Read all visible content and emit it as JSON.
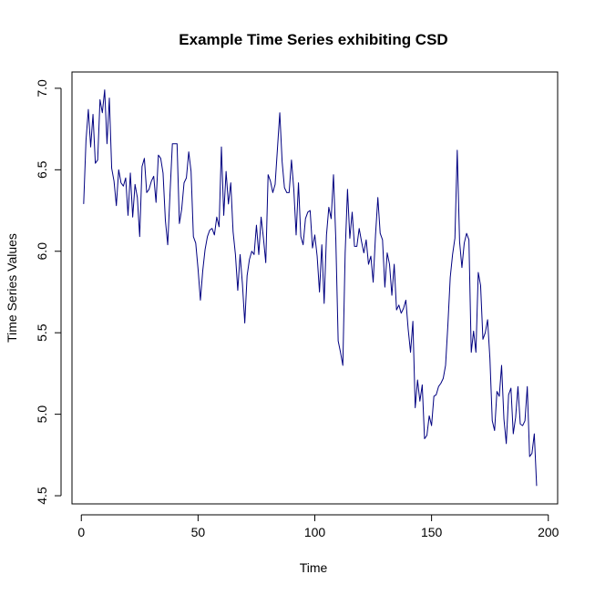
{
  "chart_data": {
    "type": "line",
    "title": "Example Time Series exhibiting CSD",
    "xlabel": "Time",
    "ylabel": "Time Series Values",
    "xlim": [
      -4,
      204
    ],
    "ylim": [
      4.45,
      7.1
    ],
    "x_ticks": [
      0,
      50,
      100,
      150,
      200
    ],
    "x_tick_labels": [
      "0",
      "50",
      "100",
      "150",
      "200"
    ],
    "y_ticks": [
      4.5,
      5.0,
      5.5,
      6.0,
      6.5,
      7.0
    ],
    "y_tick_labels": [
      "4.5",
      "5.0",
      "5.5",
      "6.0",
      "6.5",
      "7.0"
    ],
    "grid": false,
    "line_color": "#000080",
    "series": [
      {
        "values": [
          6.29,
          6.68,
          6.87,
          6.64,
          6.84,
          6.54,
          6.56,
          6.93,
          6.85,
          6.99,
          6.66,
          6.94,
          6.51,
          6.43,
          6.28,
          6.5,
          6.42,
          6.4,
          6.45,
          6.22,
          6.48,
          6.21,
          6.41,
          6.33,
          6.09,
          6.52,
          6.57,
          6.36,
          6.38,
          6.43,
          6.46,
          6.3,
          6.59,
          6.57,
          6.48,
          6.19,
          6.04,
          6.36,
          6.66,
          6.66,
          6.66,
          6.17,
          6.26,
          6.42,
          6.45,
          6.61,
          6.49,
          6.09,
          6.05,
          5.89,
          5.7,
          5.88,
          6.01,
          6.09,
          6.13,
          6.14,
          6.1,
          6.21,
          6.15,
          6.64,
          6.22,
          6.49,
          6.29,
          6.42,
          6.12,
          5.98,
          5.76,
          5.98,
          5.8,
          5.56,
          5.85,
          5.95,
          6.0,
          5.98,
          6.16,
          5.98,
          6.21,
          6.08,
          5.93,
          6.47,
          6.43,
          6.36,
          6.41,
          6.63,
          6.85,
          6.55,
          6.39,
          6.36,
          6.36,
          6.56,
          6.38,
          6.1,
          6.42,
          6.09,
          6.04,
          6.2,
          6.24,
          6.25,
          6.02,
          6.1,
          5.97,
          5.75,
          6.04,
          5.68,
          6.1,
          6.27,
          6.2,
          6.47,
          6.07,
          5.45,
          5.38,
          5.3,
          5.99,
          6.38,
          6.08,
          6.24,
          6.03,
          6.03,
          6.14,
          6.06,
          5.99,
          6.07,
          5.92,
          5.97,
          5.81,
          6.1,
          6.33,
          6.11,
          6.07,
          5.78,
          5.99,
          5.92,
          5.73,
          5.92,
          5.64,
          5.67,
          5.62,
          5.65,
          5.7,
          5.52,
          5.38,
          5.57,
          5.04,
          5.21,
          5.08,
          5.18,
          4.85,
          4.87,
          4.99,
          4.93,
          5.11,
          5.12,
          5.17,
          5.19,
          5.22,
          5.3,
          5.55,
          5.84,
          5.98,
          6.08,
          6.62,
          6.06,
          5.9,
          6.05,
          6.11,
          6.07,
          5.38,
          5.51,
          5.38,
          5.87,
          5.79,
          5.46,
          5.5,
          5.58,
          5.34,
          4.96,
          4.9,
          5.14,
          5.11,
          5.3,
          4.97,
          4.82,
          5.12,
          5.16,
          4.88,
          4.98,
          5.17,
          4.94,
          4.93,
          4.96,
          5.17,
          4.74,
          4.76,
          4.88,
          4.56
        ]
      }
    ]
  }
}
